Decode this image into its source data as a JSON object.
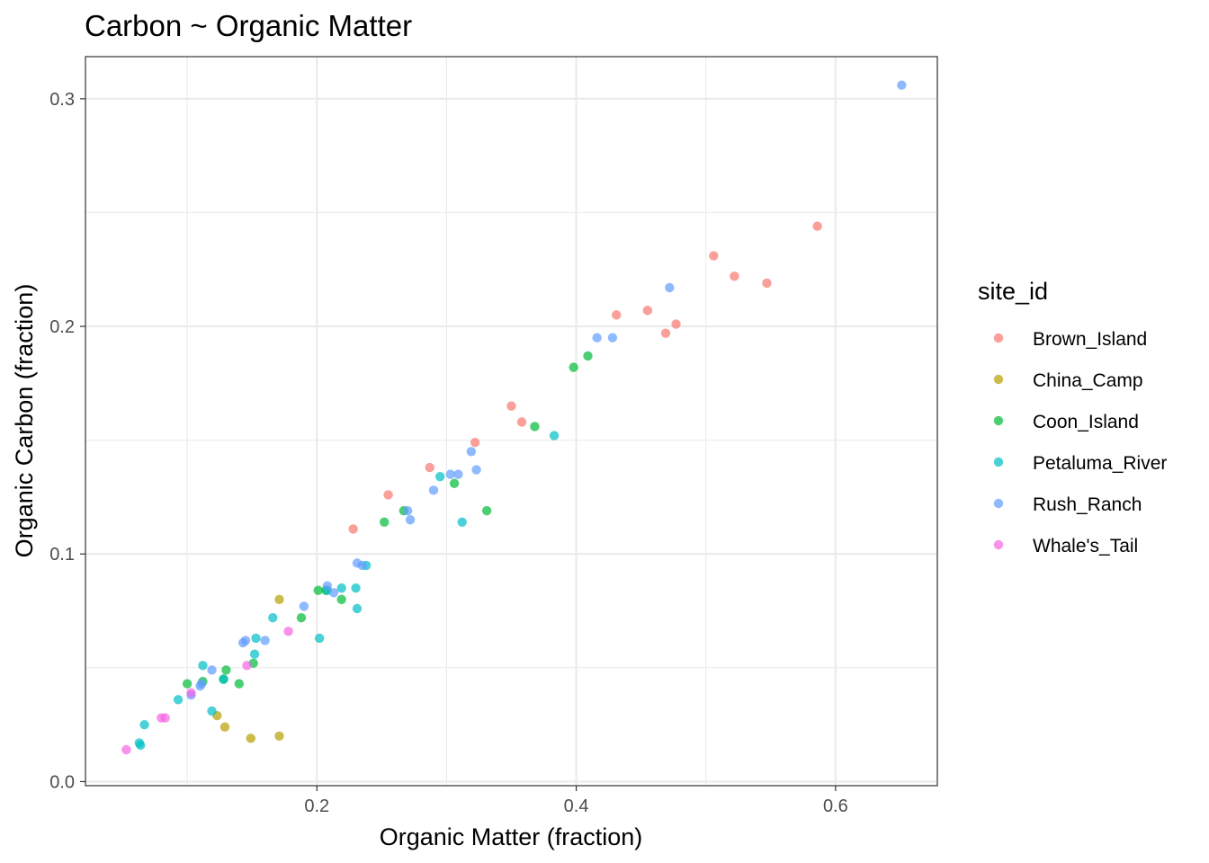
{
  "chart_data": {
    "type": "scatter",
    "title": "Carbon ~ Organic Matter",
    "xlabel": "Organic Matter (fraction)",
    "ylabel": "Organic Carbon (fraction)",
    "xlim": [
      0.0215,
      0.6785
    ],
    "ylim": [
      -0.0018,
      0.3185
    ],
    "x_ticks": [
      0.2,
      0.4,
      0.6
    ],
    "x_tick_labels": [
      "0.2",
      "0.4",
      "0.6"
    ],
    "x_minor": [
      0.1,
      0.3,
      0.5
    ],
    "y_ticks": [
      0.0,
      0.1,
      0.2,
      0.3
    ],
    "y_tick_labels": [
      "0.0",
      "0.1",
      "0.2",
      "0.3"
    ],
    "y_minor": [
      0.05,
      0.15,
      0.25
    ],
    "grid": true,
    "legend": {
      "title": "site_id",
      "position": "right"
    },
    "series": [
      {
        "name": "Brown_Island",
        "color": "#F8766D",
        "points": [
          [
            0.228,
            0.111
          ],
          [
            0.255,
            0.126
          ],
          [
            0.287,
            0.138
          ],
          [
            0.322,
            0.149
          ],
          [
            0.35,
            0.165
          ],
          [
            0.358,
            0.158
          ],
          [
            0.431,
            0.205
          ],
          [
            0.455,
            0.207
          ],
          [
            0.469,
            0.197
          ],
          [
            0.477,
            0.201
          ],
          [
            0.506,
            0.231
          ],
          [
            0.522,
            0.222
          ],
          [
            0.547,
            0.219
          ],
          [
            0.586,
            0.244
          ]
        ]
      },
      {
        "name": "China_Camp",
        "color": "#B79F00",
        "points": [
          [
            0.171,
            0.08
          ],
          [
            0.123,
            0.029
          ],
          [
            0.129,
            0.024
          ],
          [
            0.149,
            0.019
          ],
          [
            0.171,
            0.02
          ]
        ]
      },
      {
        "name": "Coon_Island",
        "color": "#00BA38",
        "points": [
          [
            0.1,
            0.043
          ],
          [
            0.112,
            0.044
          ],
          [
            0.128,
            0.045
          ],
          [
            0.13,
            0.049
          ],
          [
            0.14,
            0.043
          ],
          [
            0.151,
            0.052
          ],
          [
            0.188,
            0.072
          ],
          [
            0.201,
            0.084
          ],
          [
            0.207,
            0.084
          ],
          [
            0.219,
            0.08
          ],
          [
            0.252,
            0.114
          ],
          [
            0.267,
            0.119
          ],
          [
            0.306,
            0.131
          ],
          [
            0.331,
            0.119
          ],
          [
            0.368,
            0.156
          ],
          [
            0.398,
            0.182
          ],
          [
            0.409,
            0.187
          ]
        ]
      },
      {
        "name": "Petaluma_River",
        "color": "#00BFC4",
        "points": [
          [
            0.063,
            0.017
          ],
          [
            0.064,
            0.016
          ],
          [
            0.067,
            0.025
          ],
          [
            0.093,
            0.036
          ],
          [
            0.112,
            0.051
          ],
          [
            0.119,
            0.031
          ],
          [
            0.128,
            0.045
          ],
          [
            0.152,
            0.056
          ],
          [
            0.153,
            0.063
          ],
          [
            0.166,
            0.072
          ],
          [
            0.202,
            0.063
          ],
          [
            0.208,
            0.084
          ],
          [
            0.219,
            0.085
          ],
          [
            0.23,
            0.085
          ],
          [
            0.231,
            0.076
          ],
          [
            0.238,
            0.095
          ],
          [
            0.295,
            0.134
          ],
          [
            0.312,
            0.114
          ],
          [
            0.383,
            0.152
          ]
        ]
      },
      {
        "name": "Rush_Ranch",
        "color": "#619CFF",
        "points": [
          [
            0.103,
            0.038
          ],
          [
            0.11,
            0.042
          ],
          [
            0.111,
            0.043
          ],
          [
            0.119,
            0.049
          ],
          [
            0.143,
            0.061
          ],
          [
            0.145,
            0.062
          ],
          [
            0.16,
            0.062
          ],
          [
            0.19,
            0.077
          ],
          [
            0.208,
            0.086
          ],
          [
            0.213,
            0.083
          ],
          [
            0.231,
            0.096
          ],
          [
            0.235,
            0.095
          ],
          [
            0.27,
            0.119
          ],
          [
            0.272,
            0.115
          ],
          [
            0.29,
            0.128
          ],
          [
            0.303,
            0.135
          ],
          [
            0.309,
            0.135
          ],
          [
            0.319,
            0.145
          ],
          [
            0.323,
            0.137
          ],
          [
            0.416,
            0.195
          ],
          [
            0.428,
            0.195
          ],
          [
            0.472,
            0.217
          ],
          [
            0.651,
            0.306
          ]
        ]
      },
      {
        "name": "Whale's_Tail",
        "color": "#F564E3",
        "points": [
          [
            0.053,
            0.014
          ],
          [
            0.08,
            0.028
          ],
          [
            0.083,
            0.028
          ],
          [
            0.103,
            0.039
          ],
          [
            0.146,
            0.051
          ],
          [
            0.178,
            0.066
          ]
        ]
      }
    ]
  }
}
